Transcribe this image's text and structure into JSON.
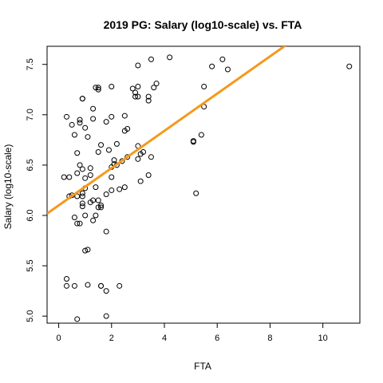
{
  "chart_data": {
    "type": "scatter",
    "title": "2019 PG: Salary (log10-scale) vs. FTA",
    "xlabel": "FTA",
    "ylabel": "Salary (log10-scale)",
    "xlim": [
      -0.44,
      11.4
    ],
    "ylim": [
      4.93,
      7.68
    ],
    "xticks": [
      0,
      2,
      4,
      6,
      8,
      10
    ],
    "yticks": [
      5.0,
      5.5,
      6.0,
      6.5,
      7.0,
      7.5
    ],
    "xtick_labels": [
      "0",
      "2",
      "4",
      "6",
      "8",
      "10"
    ],
    "ytick_labels": [
      "5.0",
      "5.5",
      "6.0",
      "6.5",
      "7.0",
      "7.5"
    ],
    "grid": false,
    "points": [
      [
        0.3,
        6.98
      ],
      [
        0.5,
        6.9
      ],
      [
        0.6,
        6.8
      ],
      [
        0.2,
        6.38
      ],
      [
        0.4,
        6.38
      ],
      [
        0.4,
        6.19
      ],
      [
        0.5,
        6.2
      ],
      [
        0.7,
        6.62
      ],
      [
        0.8,
        6.5
      ],
      [
        0.8,
        6.95
      ],
      [
        0.8,
        6.92
      ],
      [
        0.9,
        7.16
      ],
      [
        0.9,
        7.16
      ],
      [
        1.0,
        6.87
      ],
      [
        0.7,
        6.42
      ],
      [
        0.9,
        6.46
      ],
      [
        1.0,
        6.37
      ],
      [
        1.0,
        6.27
      ],
      [
        0.9,
        6.22
      ],
      [
        0.7,
        6.19
      ],
      [
        0.9,
        6.19
      ],
      [
        0.9,
        6.12
      ],
      [
        0.9,
        6.09
      ],
      [
        0.6,
        5.98
      ],
      [
        0.7,
        5.92
      ],
      [
        0.8,
        5.92
      ],
      [
        0.3,
        5.37
      ],
      [
        0.3,
        5.3
      ],
      [
        0.6,
        5.3
      ],
      [
        0.7,
        4.97
      ],
      [
        1.0,
        6.0
      ],
      [
        1.0,
        5.65
      ],
      [
        1.1,
        5.66
      ],
      [
        1.1,
        5.31
      ],
      [
        1.1,
        6.78
      ],
      [
        1.2,
        6.47
      ],
      [
        1.2,
        6.4
      ],
      [
        1.3,
        6.15
      ],
      [
        1.2,
        6.13
      ],
      [
        1.3,
        5.95
      ],
      [
        1.3,
        6.96
      ],
      [
        1.3,
        7.06
      ],
      [
        1.4,
        7.27
      ],
      [
        1.5,
        7.27
      ],
      [
        1.5,
        7.25
      ],
      [
        1.4,
        6.28
      ],
      [
        1.5,
        6.63
      ],
      [
        1.6,
        6.7
      ],
      [
        1.5,
        6.15
      ],
      [
        1.6,
        6.1
      ],
      [
        1.4,
        6.0
      ],
      [
        1.5,
        6.08
      ],
      [
        1.6,
        6.08
      ],
      [
        1.6,
        5.3
      ],
      [
        1.6,
        5.3
      ],
      [
        1.8,
        5.25
      ],
      [
        1.8,
        5.0
      ],
      [
        1.8,
        5.84
      ],
      [
        1.8,
        6.21
      ],
      [
        1.9,
        6.65
      ],
      [
        1.8,
        6.93
      ],
      [
        2.0,
        6.98
      ],
      [
        2.0,
        7.28
      ],
      [
        2.0,
        6.48
      ],
      [
        2.0,
        6.38
      ],
      [
        2.0,
        6.25
      ],
      [
        2.1,
        6.55
      ],
      [
        2.1,
        6.51
      ],
      [
        2.2,
        6.71
      ],
      [
        2.2,
        6.5
      ],
      [
        2.3,
        6.26
      ],
      [
        2.3,
        5.3
      ],
      [
        2.4,
        6.54
      ],
      [
        2.5,
        6.28
      ],
      [
        2.5,
        6.84
      ],
      [
        2.5,
        6.99
      ],
      [
        2.6,
        6.86
      ],
      [
        2.6,
        6.58
      ],
      [
        2.8,
        7.26
      ],
      [
        2.9,
        7.22
      ],
      [
        2.9,
        7.18
      ],
      [
        3.0,
        7.28
      ],
      [
        3.0,
        7.18
      ],
      [
        3.0,
        7.49
      ],
      [
        3.0,
        6.69
      ],
      [
        3.0,
        6.56
      ],
      [
        3.1,
        6.61
      ],
      [
        3.2,
        6.63
      ],
      [
        3.1,
        6.34
      ],
      [
        3.4,
        7.14
      ],
      [
        3.4,
        7.18
      ],
      [
        3.4,
        6.4
      ],
      [
        3.5,
        7.55
      ],
      [
        3.5,
        6.58
      ],
      [
        3.6,
        7.27
      ],
      [
        3.7,
        7.31
      ],
      [
        4.2,
        7.57
      ],
      [
        5.1,
        6.74
      ],
      [
        5.1,
        6.73
      ],
      [
        5.2,
        6.22
      ],
      [
        5.4,
        6.8
      ],
      [
        5.5,
        7.08
      ],
      [
        5.5,
        7.28
      ],
      [
        5.8,
        7.48
      ],
      [
        6.2,
        7.55
      ],
      [
        6.4,
        7.45
      ],
      [
        11.0,
        7.48
      ]
    ],
    "fit_line": {
      "intercept": 6.1,
      "slope": 0.185,
      "color": "#f5991c"
    },
    "point_color": "#000000"
  }
}
